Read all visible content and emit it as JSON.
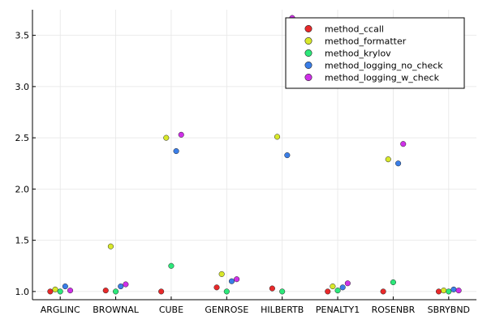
{
  "chart_data": {
    "type": "scatter",
    "title": "",
    "xlabel": "",
    "ylabel": "",
    "categories": [
      "ARGLINC",
      "BROWNAL",
      "CUBE",
      "GENROSE",
      "HILBERTB",
      "PENALTY1",
      "ROSENBR",
      "SBRYBND"
    ],
    "ylim": [
      0.92,
      3.75
    ],
    "yticks": [
      1.0,
      1.5,
      2.0,
      2.5,
      3.0,
      3.5
    ],
    "ytick_labels": [
      "1.0",
      "1.5",
      "2.0",
      "2.5",
      "3.0",
      "3.5"
    ],
    "grid": true,
    "legend_position": "top-right",
    "series": [
      {
        "name": "method_ccall",
        "color": "#e8292a",
        "values": [
          1.0,
          1.01,
          1.0,
          1.04,
          1.03,
          1.0,
          1.0,
          1.0
        ]
      },
      {
        "name": "method_formatter",
        "color": "#d8e82a",
        "values": [
          1.02,
          1.44,
          2.5,
          1.17,
          2.51,
          1.05,
          2.29,
          1.01
        ]
      },
      {
        "name": "method_krylov",
        "color": "#2de87a",
        "values": [
          1.0,
          1.0,
          1.25,
          1.0,
          1.0,
          1.01,
          1.09,
          1.0
        ]
      },
      {
        "name": "method_logging_no_check",
        "color": "#3a7ee8",
        "values": [
          1.05,
          1.05,
          2.37,
          1.1,
          2.33,
          1.04,
          2.25,
          1.02
        ]
      },
      {
        "name": "method_logging_w_check",
        "color": "#cf30e8",
        "values": [
          1.01,
          1.07,
          2.53,
          1.12,
          3.67,
          1.08,
          2.44,
          1.01
        ]
      }
    ]
  }
}
